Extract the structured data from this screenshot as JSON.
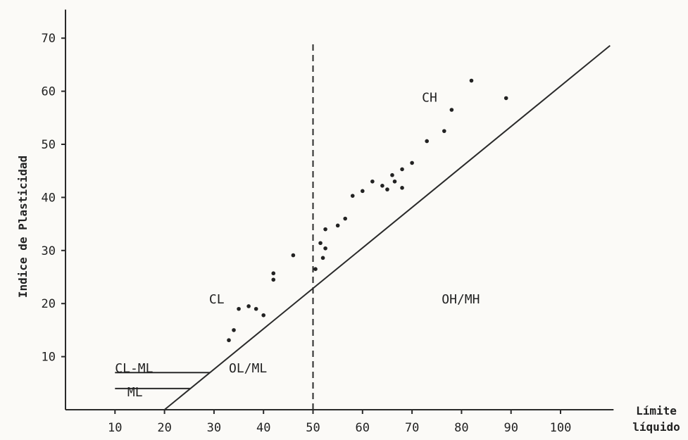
{
  "chart_data": {
    "type": "scatter",
    "xlabel": [
      "Límite",
      "líquido"
    ],
    "ylabel": "Indice de Plasticidad",
    "xlim": [
      0,
      110
    ],
    "ylim": [
      0,
      73
    ],
    "x_ticks": [
      10,
      20,
      30,
      40,
      50,
      60,
      70,
      80,
      90,
      100
    ],
    "y_ticks": [
      10,
      20,
      30,
      40,
      50,
      60,
      70
    ],
    "a_line": {
      "from": [
        20,
        0
      ],
      "to": [
        110,
        68.6
      ]
    },
    "liquid_limit_divider": 50,
    "cl_ml_lines": [
      7,
      4
    ],
    "regions": [
      {
        "label": "CH",
        "x": 72,
        "y": 58
      },
      {
        "label": "CL",
        "x": 29,
        "y": 20
      },
      {
        "label": "OH/MH",
        "x": 76,
        "y": 20
      },
      {
        "label": "OL/ML",
        "x": 33,
        "y": 7
      },
      {
        "label": "CL-ML",
        "x": 10,
        "y": 7
      },
      {
        "label": "ML",
        "x": 12.5,
        "y": 2.5
      }
    ],
    "points": [
      [
        82,
        62
      ],
      [
        89,
        58.7
      ],
      [
        78,
        56.5
      ],
      [
        73,
        50.6
      ],
      [
        76.5,
        52.5
      ],
      [
        70,
        46.5
      ],
      [
        68,
        45.3
      ],
      [
        66.5,
        43
      ],
      [
        62,
        43
      ],
      [
        64,
        42.2
      ],
      [
        66,
        44.2
      ],
      [
        68,
        41.8
      ],
      [
        65,
        41.5
      ],
      [
        58,
        40.3
      ],
      [
        60,
        41.2
      ],
      [
        56.5,
        36
      ],
      [
        55,
        34.7
      ],
      [
        52.5,
        34
      ],
      [
        51.5,
        31.4
      ],
      [
        52.5,
        30.4
      ],
      [
        52,
        28.6
      ],
      [
        50.5,
        26.5
      ],
      [
        46,
        29.1
      ],
      [
        42,
        25.7
      ],
      [
        42,
        24.5
      ],
      [
        40,
        17.8
      ],
      [
        38.5,
        19
      ],
      [
        37,
        19.5
      ],
      [
        35,
        19
      ],
      [
        34,
        15
      ],
      [
        33,
        13.1
      ]
    ]
  }
}
